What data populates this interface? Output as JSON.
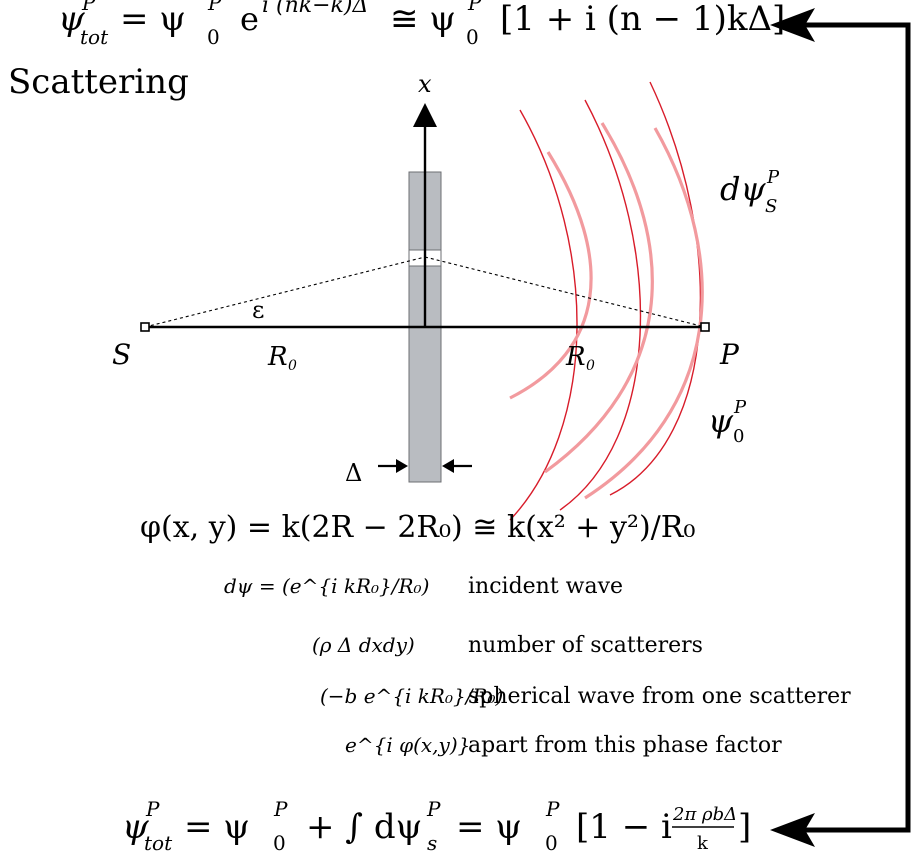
{
  "title": "Scattering",
  "equations": {
    "top_lhs": "ψ",
    "top_lhs_sup": "P",
    "top_lhs_sub": "tot",
    "top_rhs": "= ψ",
    "top_rhs_sup": "P",
    "top_rhs_sub": "0",
    "top_exp_base": "e",
    "top_exp": "i (nk−k)Δ",
    "top_approx": "≅ ψ",
    "top_approx_sup": "P",
    "top_approx_sub": "0",
    "top_bracket": "[1 + i (n − 1)kΔ]",
    "phase": "φ(x, y) = k(2R − 2R₀) ≅ k(x² + y²)/R₀",
    "bottom_lhs": "ψ",
    "bottom_lhs_sup": "P",
    "bottom_lhs_sub": "tot",
    "bottom_rhs": "= ψ",
    "bottom_rhs_sup": "P",
    "bottom_rhs_sub": "0",
    "bottom_int": "+ ∫ dψ",
    "bottom_int_sup": "P",
    "bottom_int_sub": "s",
    "bottom_eq2": "= ψ",
    "bottom_eq2_sup": "P",
    "bottom_eq2_sub": "0",
    "bottom_bracket_open": "[1 − i",
    "bottom_frac_num": "2π ρbΔ",
    "bottom_frac_den": "k",
    "bottom_bracket_close": "]"
  },
  "diagram": {
    "axis_label": "x",
    "source_label": "S",
    "point_label": "P",
    "distance_label_left": "R",
    "distance_label_left_sub": "0",
    "distance_label_right": "R",
    "distance_label_right_sub": "0",
    "angle_label": "ε",
    "thickness_label": "Δ",
    "scattered_wave_label": "dψ",
    "scattered_wave_sup": "P",
    "scattered_wave_sub": "S",
    "incident_wave_label": "ψ",
    "incident_wave_sup": "P",
    "incident_wave_sub": "0"
  },
  "terms": [
    {
      "math": "dψ = (e^{i kR₀}/R₀)",
      "desc": "incident wave"
    },
    {
      "math": "(ρ Δ dxdy)",
      "desc": "number of scatterers"
    },
    {
      "math": "(−b e^{i kR₀}/R₀)",
      "desc": "spherical wave from one scatterer"
    },
    {
      "math": "e^{i φ(x,y)}",
      "desc": "apart from this phase factor"
    }
  ],
  "colors": {
    "ink": "#000000",
    "slab": "#b9bcc1",
    "slab_edge": "#6d6f73",
    "wave_dark": "#d81c2a",
    "wave_light": "#f29a9e"
  }
}
